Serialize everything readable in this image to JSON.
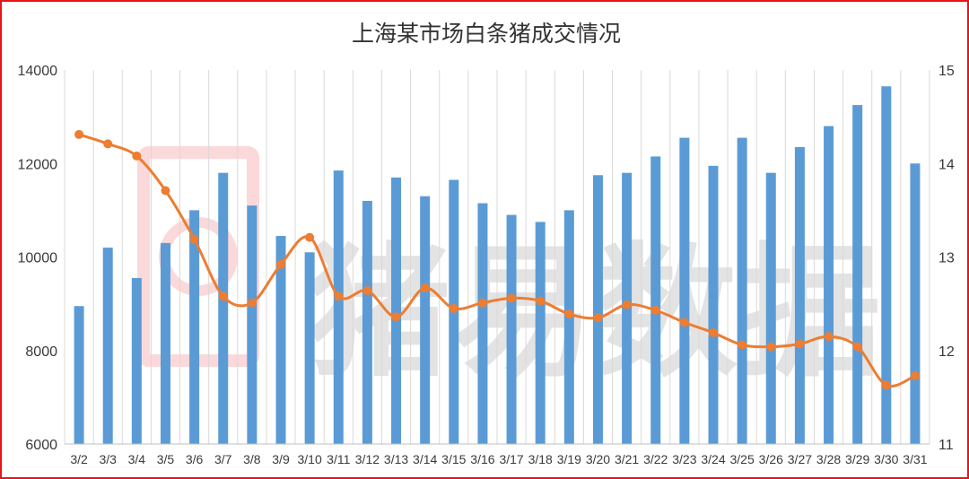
{
  "chart_data": {
    "type": "bar",
    "title": "上海某市场白条猪成交情况",
    "categories": [
      "3/2",
      "3/3",
      "3/4",
      "3/5",
      "3/6",
      "3/7",
      "3/8",
      "3/9",
      "3/10",
      "3/11",
      "3/12",
      "3/13",
      "3/14",
      "3/15",
      "3/16",
      "3/17",
      "3/18",
      "3/19",
      "3/20",
      "3/21",
      "3/22",
      "3/23",
      "3/24",
      "3/25",
      "3/26",
      "3/27",
      "3/28",
      "3/29",
      "3/30",
      "3/31"
    ],
    "series": [
      {
        "type": "bar",
        "axis": "left",
        "color": "#5b9bd5",
        "values": [
          8950,
          10200,
          9550,
          10300,
          11000,
          11800,
          11100,
          10450,
          10100,
          11850,
          11200,
          11700,
          11300,
          11650,
          11150,
          10900,
          10750,
          11000,
          11750,
          11800,
          12150,
          12550,
          11950,
          12550,
          11800,
          12350,
          12800,
          13250,
          13650,
          12000
        ]
      },
      {
        "type": "line",
        "axis": "right",
        "color": "#ed7d31",
        "values": [
          14.31,
          14.21,
          14.08,
          13.71,
          13.19,
          12.58,
          12.51,
          12.92,
          13.21,
          12.58,
          12.64,
          12.36,
          12.67,
          12.45,
          12.51,
          12.56,
          12.53,
          12.39,
          12.35,
          12.49,
          12.43,
          12.3,
          12.19,
          12.06,
          12.04,
          12.07,
          12.15,
          12.04,
          11.63,
          11.73
        ]
      }
    ],
    "ylim_left": [
      6000,
      14000
    ],
    "yticks_left": [
      "6000",
      "8000",
      "10000",
      "12000",
      "14000"
    ],
    "ylim_right": [
      11,
      15
    ],
    "yticks_right": [
      "11",
      "12",
      "13",
      "14",
      "15"
    ],
    "grid": "vertical",
    "watermark": "猪易数据"
  }
}
